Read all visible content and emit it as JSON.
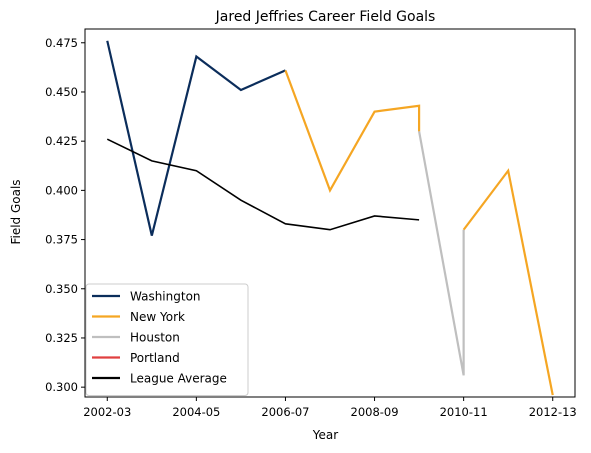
{
  "chart_data": {
    "type": "line",
    "title": "Jared Jeffries Career Field Goals",
    "xlabel": "Year",
    "ylabel": "Field Goals",
    "x_ticks": [
      "2002-03",
      "2004-05",
      "2006-07",
      "2008-09",
      "2010-11",
      "2012-13"
    ],
    "xlim": [
      "2002-03",
      "2012-13"
    ],
    "y_ticks": [
      "0.300",
      "0.325",
      "0.350",
      "0.375",
      "0.400",
      "0.425",
      "0.450",
      "0.475"
    ],
    "ylim": [
      0.295,
      0.482
    ],
    "grid": false,
    "legend_position": "lower-left",
    "series": [
      {
        "name": "Washington",
        "color": "#0b2d5b",
        "points": [
          {
            "x": "2002-03",
            "y": 0.476
          },
          {
            "x": "2003-04",
            "y": 0.377
          },
          {
            "x": "2004-05",
            "y": 0.468
          },
          {
            "x": "2005-06",
            "y": 0.451
          },
          {
            "x": "2006-07",
            "y": 0.461
          }
        ]
      },
      {
        "name": "New York",
        "color": "#f5a623",
        "segments": [
          [
            {
              "x": "2006-07",
              "y": 0.461
            },
            {
              "x": "2007-08",
              "y": 0.4
            },
            {
              "x": "2008-09",
              "y": 0.44
            },
            {
              "x": "2009-10",
              "y": 0.443
            },
            {
              "x": "2009-10",
              "y": 0.43
            }
          ],
          [
            {
              "x": "2010-11",
              "y": 0.38
            },
            {
              "x": "2011-12",
              "y": 0.41
            },
            {
              "x": "2012-13",
              "y": 0.296
            }
          ]
        ]
      },
      {
        "name": "Houston",
        "color": "#bfbfbf",
        "points": [
          {
            "x": "2009-10",
            "y": 0.43
          },
          {
            "x": "2010-11",
            "y": 0.306
          },
          {
            "x": "2010-11",
            "y": 0.38
          }
        ]
      },
      {
        "name": "Portland",
        "color": "#e04040",
        "points": []
      },
      {
        "name": "League Average",
        "color": "#000000",
        "points": [
          {
            "x": "2002-03",
            "y": 0.426
          },
          {
            "x": "2003-04",
            "y": 0.415
          },
          {
            "x": "2004-05",
            "y": 0.41
          },
          {
            "x": "2005-06",
            "y": 0.395
          },
          {
            "x": "2006-07",
            "y": 0.383
          },
          {
            "x": "2007-08",
            "y": 0.38
          },
          {
            "x": "2008-09",
            "y": 0.387
          },
          {
            "x": "2009-10",
            "y": 0.385
          }
        ]
      }
    ]
  }
}
